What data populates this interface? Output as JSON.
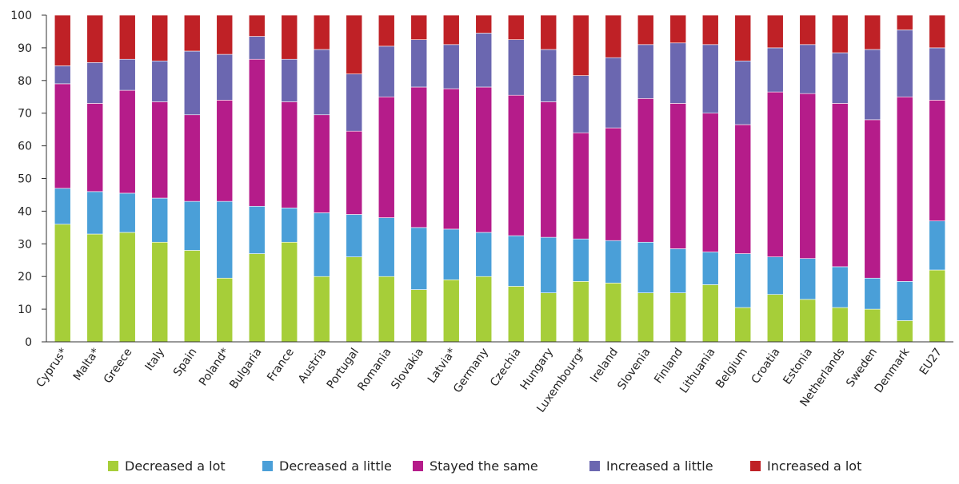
{
  "chart_data": {
    "type": "bar",
    "stacked": true,
    "title": "",
    "xlabel": "",
    "ylabel": "",
    "ylim": [
      0,
      100
    ],
    "yticks": [
      0,
      10,
      20,
      30,
      40,
      50,
      60,
      70,
      80,
      90,
      100
    ],
    "grid": false,
    "legend_position": "bottom",
    "categories": [
      "Cyprus*",
      "Malta*",
      "Greece",
      "Italy",
      "Spain",
      "Poland*",
      "Bulgaria",
      "France",
      "Austria",
      "Portugal",
      "Romania",
      "Slovakia",
      "Latvia*",
      "Germany",
      "Czechia",
      "Hungary",
      "Luxembourg*",
      "Ireland",
      "Slovenia",
      "Finland",
      "Lithuania",
      "Belgium",
      "Croatia",
      "Estonia",
      "Netherlands",
      "Sweden",
      "Denmark",
      "EU27"
    ],
    "series": [
      {
        "name": "Decreased a lot",
        "color": "#a6ce39",
        "values": [
          36,
          33,
          33.5,
          30.5,
          28,
          19.5,
          27,
          30.5,
          20,
          26,
          20,
          16,
          19,
          20,
          17,
          15,
          18.5,
          18,
          15,
          15,
          17.5,
          10.5,
          14.5,
          13,
          10.5,
          10,
          6.5,
          22
        ]
      },
      {
        "name": "Decreased a little",
        "color": "#4a9fd8",
        "values": [
          11,
          13,
          12,
          13.5,
          15,
          23.5,
          14.5,
          10.5,
          19.5,
          13,
          18,
          19,
          15.5,
          13.5,
          15.5,
          17,
          13,
          13,
          15.5,
          13.5,
          10,
          16.5,
          11.5,
          12.5,
          12.5,
          9.5,
          12,
          15
        ]
      },
      {
        "name": "Stayed the same",
        "color": "#b51c8a",
        "values": [
          32,
          27,
          31.5,
          29.5,
          26.5,
          31,
          45,
          32.5,
          30,
          25.5,
          37,
          43,
          43,
          44.5,
          43,
          41.5,
          32.5,
          34.5,
          44,
          44.5,
          42.5,
          39.5,
          50.5,
          50.5,
          50,
          48.5,
          56.5,
          37
        ]
      },
      {
        "name": "Increased a little",
        "color": "#6b67b0",
        "values": [
          5.5,
          12.5,
          9.5,
          12.5,
          19.5,
          14,
          7,
          13,
          20,
          17.5,
          15.5,
          14.5,
          13.5,
          16.5,
          17,
          16,
          17.5,
          21.5,
          16.5,
          18.5,
          21,
          19.5,
          13.5,
          15,
          15.5,
          21.5,
          20.5,
          16
        ]
      },
      {
        "name": "Increased a lot",
        "color": "#bf2126",
        "values": [
          15.5,
          14.5,
          13.5,
          14,
          11,
          12,
          6.5,
          13.5,
          10.5,
          18,
          9.5,
          7.5,
          9,
          5.5,
          7.5,
          10.5,
          18.5,
          13,
          9,
          8.5,
          9,
          14,
          10,
          9,
          11.5,
          10.5,
          4.5,
          10
        ]
      }
    ]
  }
}
